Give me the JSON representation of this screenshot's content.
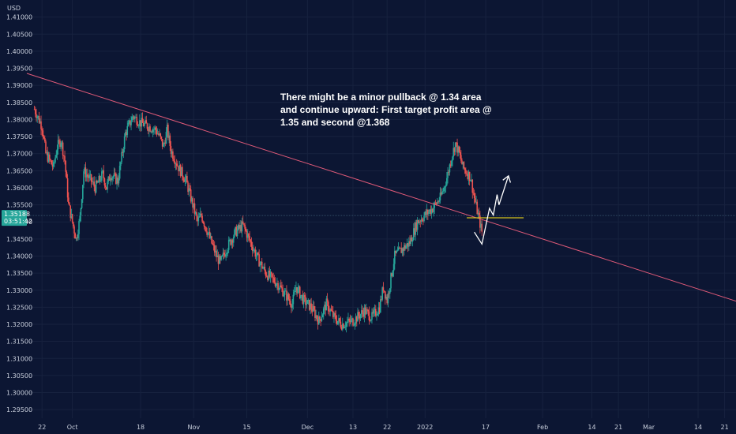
{
  "chart_data": {
    "type": "candlestick",
    "currency": "USD",
    "y_axis": {
      "min": 1.2925,
      "max": 1.415,
      "ticks": [
        "1.41000",
        "1.40500",
        "1.40000",
        "1.39500",
        "1.39000",
        "1.38500",
        "1.38000",
        "1.37500",
        "1.37000",
        "1.36500",
        "1.36000",
        "1.35500",
        "1.35000",
        "1.34500",
        "1.34000",
        "1.33500",
        "1.33000",
        "1.32500",
        "1.32000",
        "1.31500",
        "1.31000",
        "1.30500",
        "1.30000",
        "1.29500"
      ]
    },
    "x_axis": {
      "labels": [
        {
          "text": "22",
          "day": 0
        },
        {
          "text": "Oct",
          "day": 8
        },
        {
          "text": "18",
          "day": 26
        },
        {
          "text": "Nov",
          "day": 40
        },
        {
          "text": "15",
          "day": 54
        },
        {
          "text": "Dec",
          "day": 70
        },
        {
          "text": "13",
          "day": 82
        },
        {
          "text": "22",
          "day": 91
        },
        {
          "text": "2022",
          "day": 101
        },
        {
          "text": "17",
          "day": 117
        },
        {
          "text": "Feb",
          "day": 132
        },
        {
          "text": "14",
          "day": 145
        },
        {
          "text": "21",
          "day": 152
        },
        {
          "text": "Mar",
          "day": 160
        },
        {
          "text": "14",
          "day": 173
        },
        {
          "text": "21",
          "day": 180
        }
      ],
      "day_range": [
        -4,
        183
      ]
    },
    "current_price": {
      "value": 1.35188,
      "label": "1.35188",
      "countdown": "03:51:42"
    },
    "price_path": [
      {
        "day": -2,
        "price": 1.383
      },
      {
        "day": 0,
        "price": 1.378
      },
      {
        "day": 1,
        "price": 1.37
      },
      {
        "day": 3,
        "price": 1.366
      },
      {
        "day": 4,
        "price": 1.372
      },
      {
        "day": 5,
        "price": 1.374
      },
      {
        "day": 6,
        "price": 1.368
      },
      {
        "day": 7,
        "price": 1.355
      },
      {
        "day": 8,
        "price": 1.35
      },
      {
        "day": 9,
        "price": 1.345
      },
      {
        "day": 10,
        "price": 1.351
      },
      {
        "day": 11,
        "price": 1.365
      },
      {
        "day": 13,
        "price": 1.362
      },
      {
        "day": 14,
        "price": 1.36
      },
      {
        "day": 16,
        "price": 1.364
      },
      {
        "day": 17,
        "price": 1.36
      },
      {
        "day": 18,
        "price": 1.364
      },
      {
        "day": 20,
        "price": 1.362
      },
      {
        "day": 22,
        "price": 1.376
      },
      {
        "day": 24,
        "price": 1.381
      },
      {
        "day": 26,
        "price": 1.379
      },
      {
        "day": 28,
        "price": 1.378
      },
      {
        "day": 30,
        "price": 1.377
      },
      {
        "day": 31,
        "price": 1.375
      },
      {
        "day": 32,
        "price": 1.372
      },
      {
        "day": 33,
        "price": 1.377
      },
      {
        "day": 34,
        "price": 1.371
      },
      {
        "day": 36,
        "price": 1.366
      },
      {
        "day": 38,
        "price": 1.362
      },
      {
        "day": 40,
        "price": 1.354
      },
      {
        "day": 41,
        "price": 1.35
      },
      {
        "day": 42,
        "price": 1.352
      },
      {
        "day": 44,
        "price": 1.346
      },
      {
        "day": 46,
        "price": 1.34
      },
      {
        "day": 47,
        "price": 1.338
      },
      {
        "day": 49,
        "price": 1.343
      },
      {
        "day": 51,
        "price": 1.347
      },
      {
        "day": 53,
        "price": 1.349
      },
      {
        "day": 55,
        "price": 1.344
      },
      {
        "day": 57,
        "price": 1.339
      },
      {
        "day": 59,
        "price": 1.335
      },
      {
        "day": 62,
        "price": 1.332
      },
      {
        "day": 64,
        "price": 1.329
      },
      {
        "day": 66,
        "price": 1.326
      },
      {
        "day": 67,
        "price": 1.331
      },
      {
        "day": 69,
        "price": 1.327
      },
      {
        "day": 71,
        "price": 1.325
      },
      {
        "day": 73,
        "price": 1.321
      },
      {
        "day": 75,
        "price": 1.326
      },
      {
        "day": 77,
        "price": 1.322
      },
      {
        "day": 79,
        "price": 1.32
      },
      {
        "day": 82,
        "price": 1.321
      },
      {
        "day": 84,
        "price": 1.323
      },
      {
        "day": 85,
        "price": 1.324
      },
      {
        "day": 87,
        "price": 1.322
      },
      {
        "day": 89,
        "price": 1.325
      },
      {
        "day": 90,
        "price": 1.331
      },
      {
        "day": 91,
        "price": 1.327
      },
      {
        "day": 93,
        "price": 1.34
      },
      {
        "day": 95,
        "price": 1.342
      },
      {
        "day": 97,
        "price": 1.344
      },
      {
        "day": 99,
        "price": 1.35
      },
      {
        "day": 101,
        "price": 1.352
      },
      {
        "day": 103,
        "price": 1.354
      },
      {
        "day": 105,
        "price": 1.357
      },
      {
        "day": 106,
        "price": 1.36
      },
      {
        "day": 107,
        "price": 1.364
      },
      {
        "day": 108,
        "price": 1.369
      },
      {
        "day": 109,
        "price": 1.373
      },
      {
        "day": 110,
        "price": 1.37
      },
      {
        "day": 111,
        "price": 1.366
      },
      {
        "day": 113,
        "price": 1.363
      },
      {
        "day": 114,
        "price": 1.357
      },
      {
        "day": 115,
        "price": 1.352
      },
      {
        "day": 116,
        "price": 1.347
      }
    ],
    "trend_line": {
      "color": "#e05a78",
      "from": {
        "day": -4,
        "price": 1.3935
      },
      "to": {
        "day": 183,
        "price": 1.3268
      }
    },
    "support_line": {
      "color": "#d4c11c",
      "price": 1.3512,
      "from_day": 112,
      "to_day": 127
    },
    "projection": {
      "color": "#ffffff",
      "points": [
        {
          "day": 114,
          "price": 1.347
        },
        {
          "day": 116,
          "price": 1.3435
        },
        {
          "day": 118,
          "price": 1.354
        },
        {
          "day": 119,
          "price": 1.352
        },
        {
          "day": 120,
          "price": 1.358
        },
        {
          "day": 120.5,
          "price": 1.355
        },
        {
          "day": 123,
          "price": 1.3635
        }
      ]
    },
    "annotation": {
      "lines": [
        "There might be a minor pullback @ 1.34 area",
        "and continue upward: First target profit area @",
        "1.35 and second @1.368"
      ]
    },
    "colors": {
      "up": "#26a69a",
      "down": "#ef5350",
      "background": "#0c1633",
      "badge": "#26a69a"
    }
  }
}
